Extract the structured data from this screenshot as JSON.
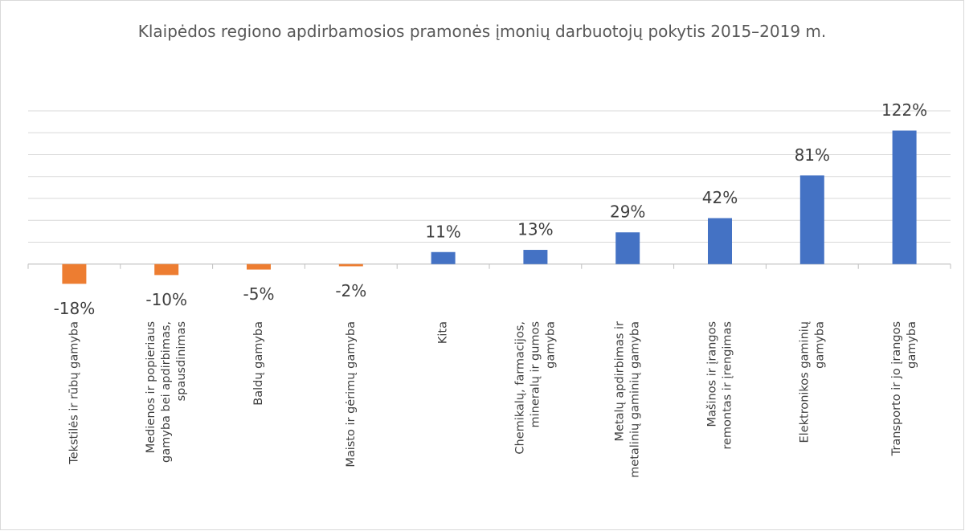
{
  "chart_data": {
    "type": "bar",
    "title": "Klaipėdos regiono apdirbamosios pramonės įmonių darbuotojų pokytis 2015–2019 m.",
    "categories": [
      [
        "Tekstilės ir rūbų gamyba"
      ],
      [
        "Medienos ir popieriaus",
        "gamyba bei apdirbimas,",
        "spausdinimas"
      ],
      [
        "Baldų gamyba"
      ],
      [
        "Maisto ir gėrimų gamyba"
      ],
      [
        "Kita"
      ],
      [
        "Chemikalų, farmacijos,",
        "mineralų ir gumos",
        "gamyba"
      ],
      [
        "Metalų apdirbimas ir",
        "metalinių gaminių gamyba"
      ],
      [
        "Mašinos ir įrangos",
        "remontas ir įrengimas"
      ],
      [
        "Elektronikos gaminių",
        "gamyba"
      ],
      [
        "Transporto ir jo įrangos",
        "gamyba"
      ]
    ],
    "values": [
      -18,
      -10,
      -5,
      -2,
      11,
      13,
      29,
      42,
      81,
      122
    ],
    "value_labels": [
      "-18%",
      "-10%",
      "-5%",
      "-2%",
      "11%",
      "13%",
      "29%",
      "42%",
      "81%",
      "122%"
    ],
    "colors": [
      "#ed7d31",
      "#ed7d31",
      "#ed7d31",
      "#ed7d31",
      "#4472c4",
      "#4472c4",
      "#4472c4",
      "#4472c4",
      "#4472c4",
      "#4472c4"
    ],
    "ylim": [
      -20,
      140
    ],
    "yticks": [
      0,
      20,
      40,
      60,
      80,
      100,
      120,
      140
    ],
    "grid": true
  }
}
